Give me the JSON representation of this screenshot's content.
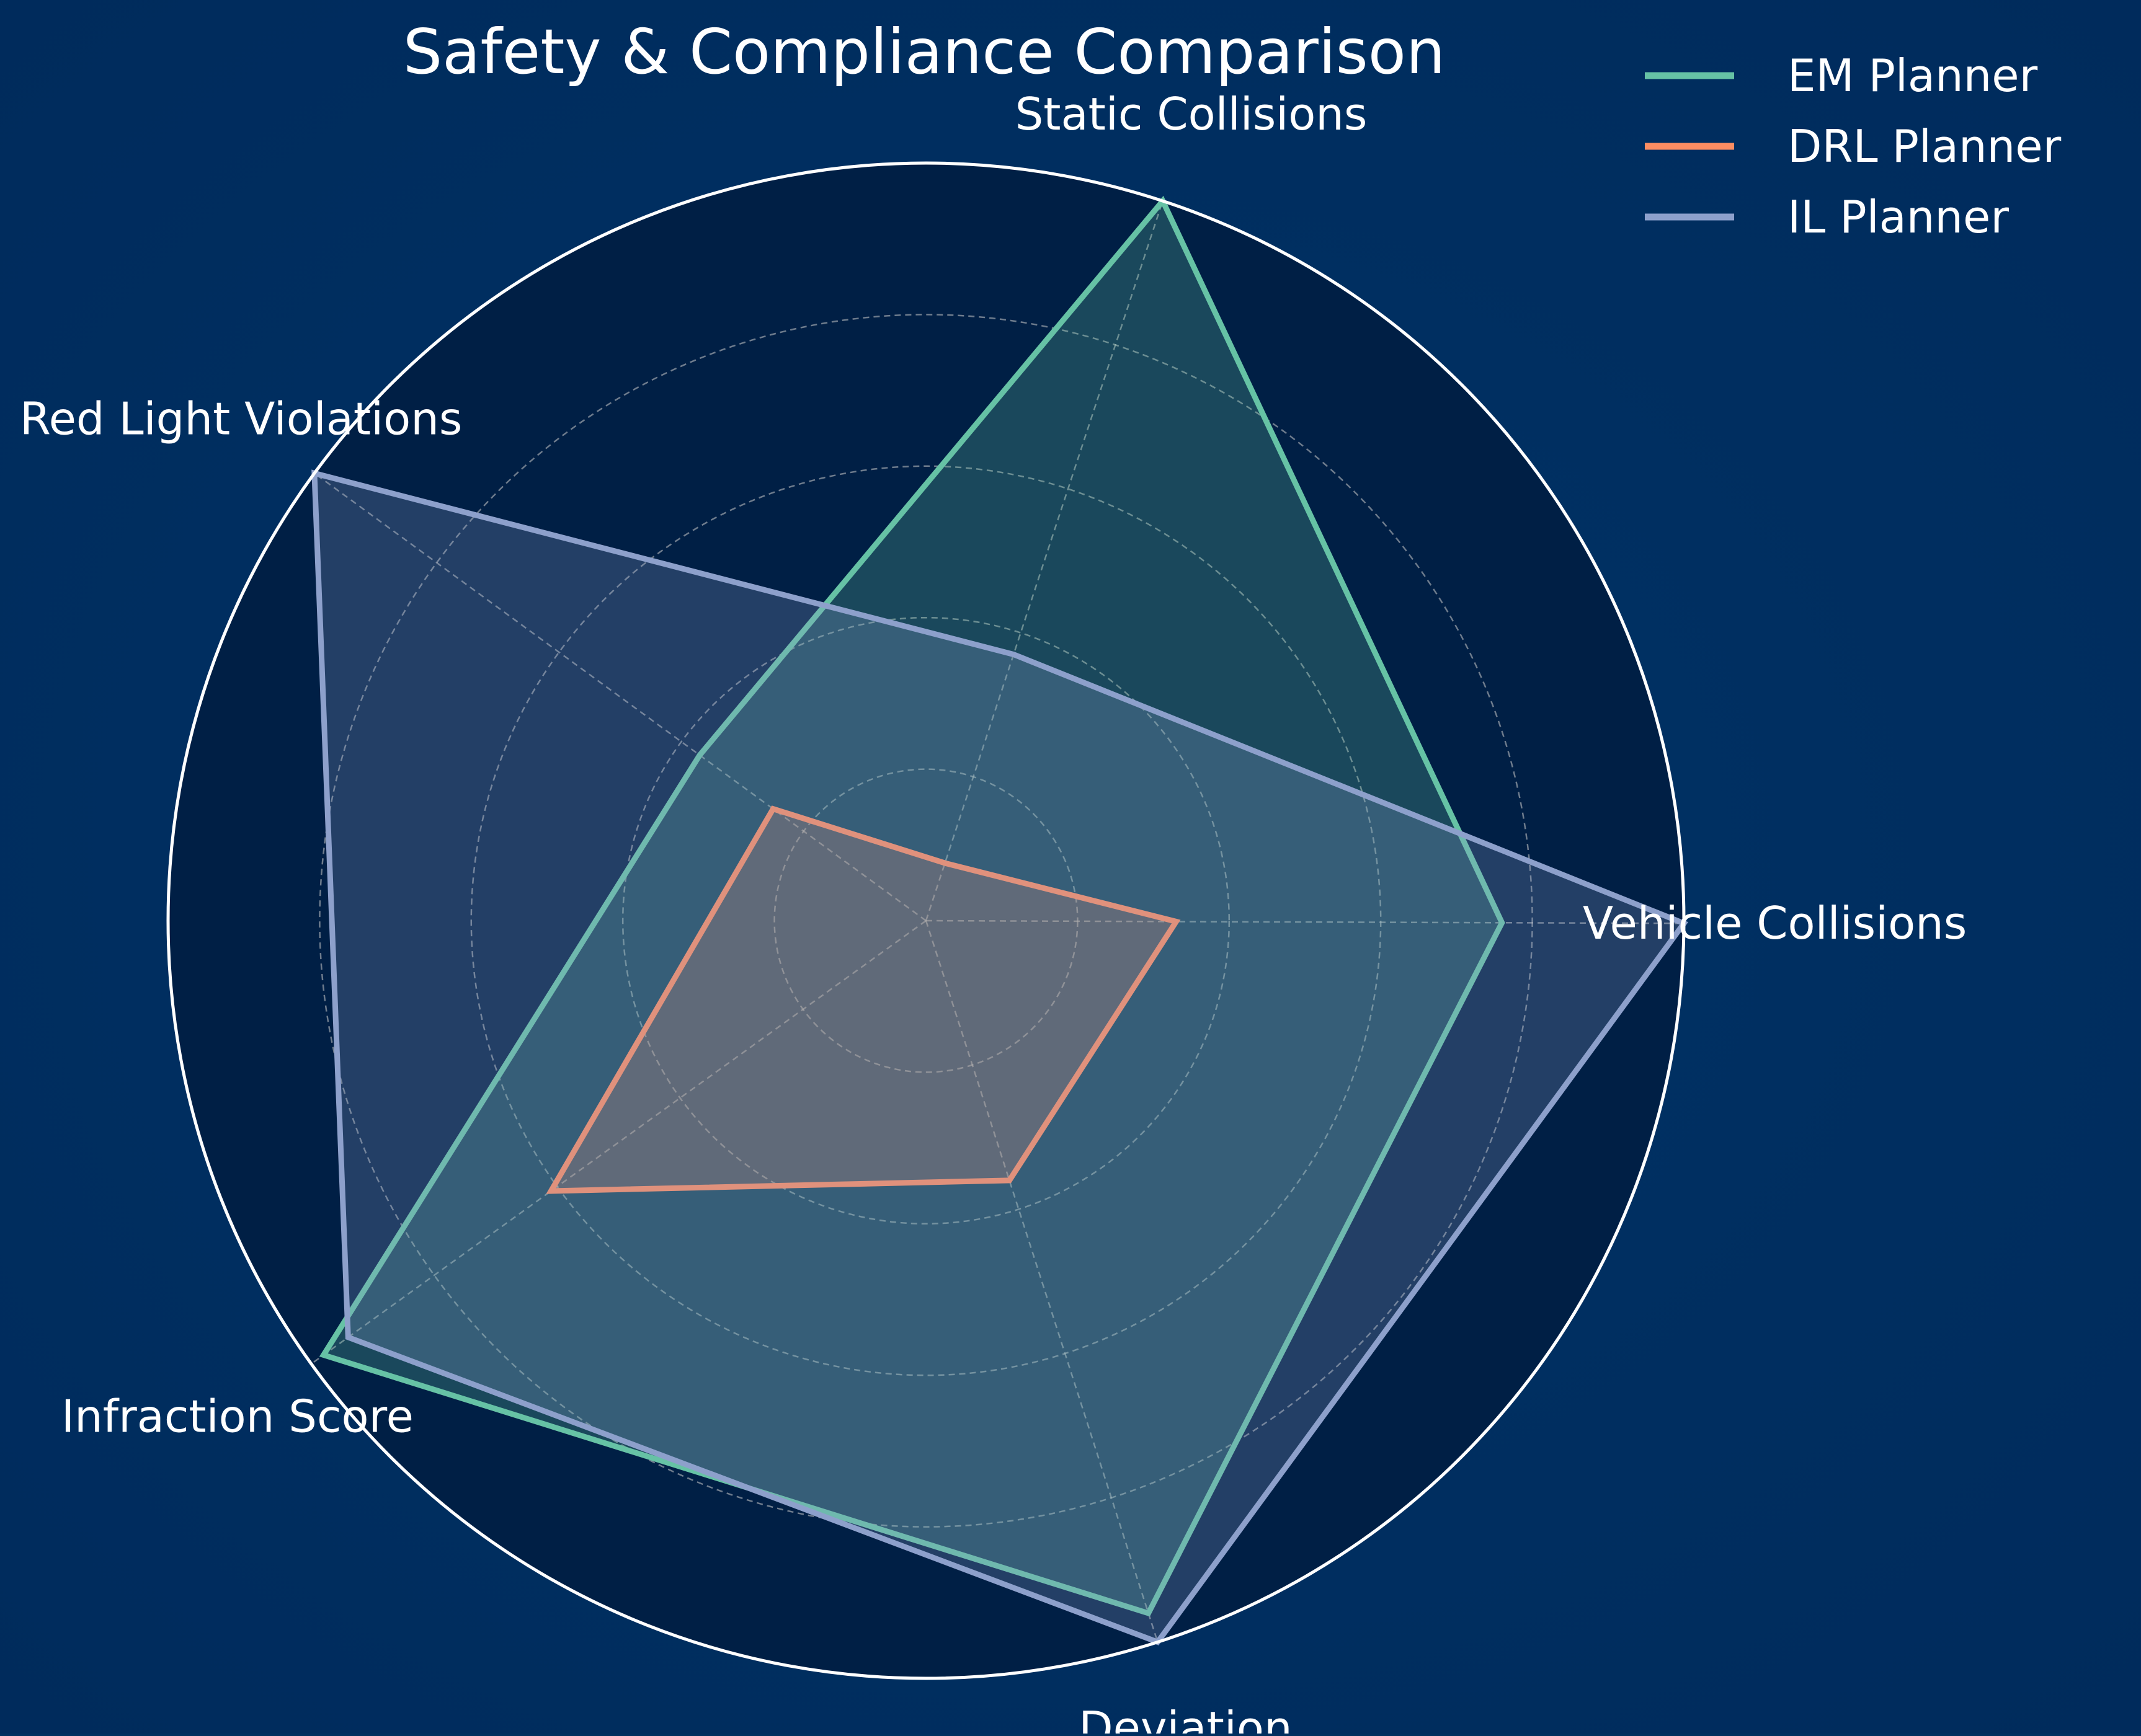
{
  "chart_data": {
    "type": "radar",
    "title": "Safety & Compliance Comparison",
    "axes": [
      "Vehicle Collisions",
      "Static Collisions",
      "Red Light Violations",
      "Infraction Score",
      "Deviation"
    ],
    "rlim": [
      0,
      1
    ],
    "grid": true,
    "legend_position": "top-right",
    "series": [
      {
        "name": "EM Planner",
        "color": "#66c2a5",
        "values": [
          0.76,
          1.0,
          0.37,
          0.98,
          0.96
        ]
      },
      {
        "name": "DRL Planner",
        "color": "#fc8d62",
        "values": [
          0.33,
          0.08,
          0.25,
          0.61,
          0.36
        ]
      },
      {
        "name": "IL Planner",
        "color": "#8da0cb",
        "values": [
          1.0,
          0.37,
          1.0,
          0.94,
          1.0
        ]
      }
    ]
  }
}
